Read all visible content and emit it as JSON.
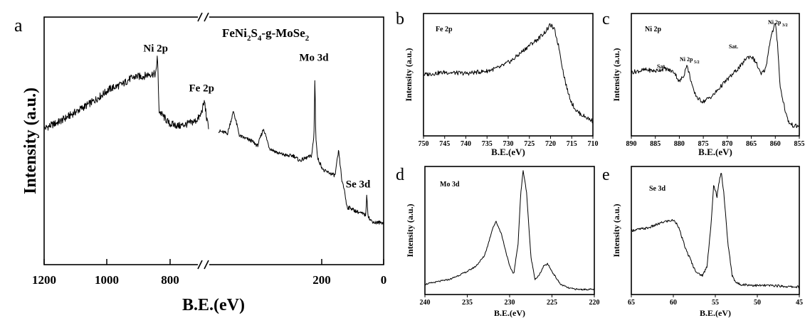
{
  "chart_data": [
    {
      "type": "line",
      "panel": "a",
      "annotation": "FeNi2S4-g-MoSe2",
      "xlabel": "B.E.(eV)",
      "ylabel": "Intensity (a.u.)",
      "x_reversed": true,
      "x_ticks": [
        "1200",
        "1000",
        "800",
        "200",
        "0"
      ],
      "axis_break": true,
      "peaks": [
        {
          "label": "Ni 2p",
          "x": 855
        },
        {
          "label": "Fe 2p",
          "x": 712
        },
        {
          "label": "Mo 3d",
          "x": 229
        },
        {
          "label": "Se 3d",
          "x": 55
        }
      ],
      "x": [
        1200,
        1150,
        1100,
        1050,
        1000,
        980,
        960,
        940,
        920,
        900,
        880,
        860,
        858,
        856,
        854,
        852,
        850,
        820,
        790,
        760,
        740,
        725,
        712,
        705,
        700,
        695,
        550,
        520,
        500,
        480,
        460,
        440,
        420,
        400,
        380,
        350,
        320,
        300,
        280,
        260,
        240,
        232,
        229,
        226,
        220,
        200,
        180,
        162,
        150,
        138,
        130,
        125,
        120,
        110,
        100,
        80,
        60,
        56,
        52,
        45,
        30,
        15,
        0
      ],
      "y": [
        0.55,
        0.58,
        0.62,
        0.66,
        0.71,
        0.72,
        0.73,
        0.75,
        0.76,
        0.76,
        0.77,
        0.77,
        0.8,
        0.85,
        0.79,
        0.68,
        0.62,
        0.57,
        0.56,
        0.57,
        0.58,
        0.6,
        0.66,
        0.58,
        0.56,
        0.55,
        0.54,
        0.53,
        0.62,
        0.52,
        0.51,
        0.5,
        0.48,
        0.55,
        0.47,
        0.45,
        0.44,
        0.44,
        0.42,
        0.43,
        0.44,
        0.52,
        0.76,
        0.52,
        0.43,
        0.38,
        0.37,
        0.36,
        0.46,
        0.33,
        0.3,
        0.25,
        0.23,
        0.23,
        0.22,
        0.21,
        0.2,
        0.28,
        0.2,
        0.18,
        0.17,
        0.17,
        0.17
      ]
    },
    {
      "type": "line",
      "panel": "b",
      "annotation": "Fe 2p",
      "xlabel": "B.E.(eV)",
      "ylabel": "Intensity (a.u.)",
      "xlim": [
        750,
        710
      ],
      "x_ticks": [
        750,
        745,
        740,
        735,
        730,
        725,
        720,
        715,
        710
      ],
      "x": [
        750,
        745,
        740,
        735,
        732,
        729,
        727,
        725,
        723,
        721,
        720,
        719,
        718,
        717,
        716,
        715,
        714,
        713,
        712,
        711,
        710
      ],
      "y": [
        0.5,
        0.52,
        0.51,
        0.53,
        0.56,
        0.62,
        0.68,
        0.74,
        0.79,
        0.86,
        0.91,
        0.86,
        0.72,
        0.52,
        0.37,
        0.27,
        0.21,
        0.18,
        0.16,
        0.14,
        0.12
      ]
    },
    {
      "type": "line",
      "panel": "c",
      "annotation": "Ni 2p",
      "xlabel": "B.E.(eV)",
      "ylabel": "Intensity (a.u.)",
      "xlim": [
        890,
        855
      ],
      "x_ticks": [
        890,
        885,
        880,
        875,
        870,
        865,
        860,
        855
      ],
      "peak_labels": [
        "Ni 2p 3/2",
        "Ni 2p 5/2",
        "Sat.",
        "Sat."
      ],
      "x": [
        890,
        887,
        885,
        883,
        881,
        880,
        879,
        878.5,
        878,
        877,
        876,
        875,
        873,
        871,
        869,
        867,
        866,
        865,
        864,
        863,
        862,
        861,
        860,
        859.5,
        859,
        858,
        857.5,
        857,
        856
      ],
      "y": [
        0.52,
        0.54,
        0.53,
        0.55,
        0.52,
        0.44,
        0.5,
        0.58,
        0.52,
        0.36,
        0.3,
        0.28,
        0.33,
        0.42,
        0.5,
        0.58,
        0.64,
        0.65,
        0.6,
        0.5,
        0.55,
        0.8,
        0.92,
        0.74,
        0.4,
        0.22,
        0.14,
        0.1,
        0.08
      ]
    },
    {
      "type": "line",
      "panel": "d",
      "annotation": "Mo 3d",
      "xlabel": "B.E.(eV)",
      "ylabel": "Intensity (a.u.)",
      "xlim": [
        240,
        220
      ],
      "x_ticks": [
        240,
        235,
        230,
        225,
        220
      ],
      "x": [
        240,
        237,
        236,
        235,
        234,
        233,
        232.5,
        232,
        231.6,
        231,
        230,
        229.5,
        229,
        228.7,
        228.4,
        228,
        227.5,
        227,
        226.5,
        226,
        225.5,
        225,
        224,
        223,
        222,
        221,
        220
      ],
      "y": [
        0.08,
        0.12,
        0.15,
        0.18,
        0.22,
        0.3,
        0.4,
        0.52,
        0.57,
        0.48,
        0.22,
        0.16,
        0.4,
        0.78,
        0.97,
        0.8,
        0.3,
        0.12,
        0.15,
        0.22,
        0.24,
        0.18,
        0.08,
        0.05,
        0.04,
        0.04,
        0.04
      ]
    },
    {
      "type": "line",
      "panel": "e",
      "annotation": "Se 3d",
      "xlabel": "B.E.(eV)",
      "ylabel": "Intensity (a.u.)",
      "xlim": [
        65,
        45
      ],
      "x_ticks": [
        65,
        60,
        55,
        50,
        45
      ],
      "x": [
        65,
        63,
        61,
        60,
        59.5,
        59,
        58.5,
        58,
        57.5,
        57,
        56.5,
        56,
        55.5,
        55.2,
        55,
        54.8,
        54.5,
        54.3,
        54,
        53.5,
        53,
        52.5,
        52,
        50,
        48,
        46,
        45
      ],
      "y": [
        0.5,
        0.52,
        0.57,
        0.58,
        0.55,
        0.45,
        0.35,
        0.28,
        0.2,
        0.16,
        0.15,
        0.22,
        0.55,
        0.85,
        0.82,
        0.76,
        0.9,
        0.96,
        0.8,
        0.4,
        0.15,
        0.09,
        0.08,
        0.07,
        0.07,
        0.06,
        0.06
      ]
    }
  ]
}
